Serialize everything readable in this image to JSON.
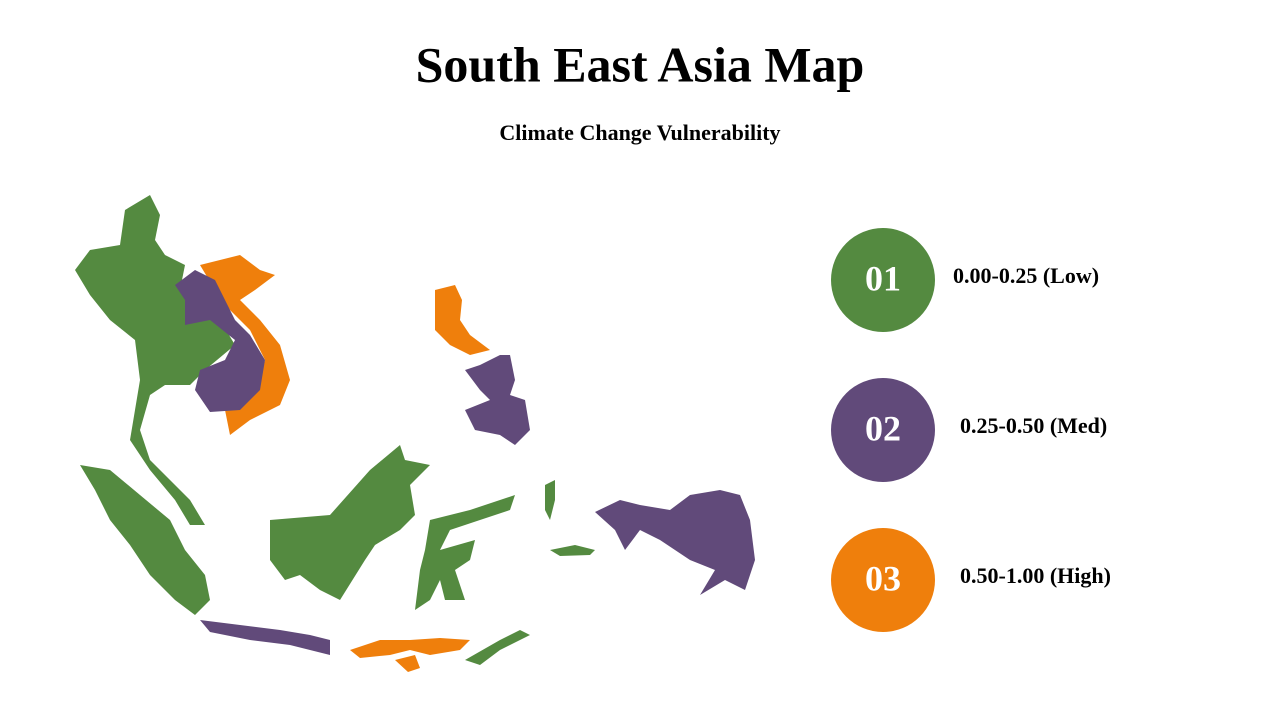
{
  "title": "South East Asia Map",
  "subtitle": "Climate Change Vulnerability",
  "legend": [
    {
      "number": "01",
      "label": "0.00-0.25 (Low)",
      "color": "#548a40"
    },
    {
      "number": "02",
      "label": "0.25-0.50 (Med)",
      "color": "#614a7a"
    },
    {
      "number": "03",
      "label": "0.50-1.00 (High)",
      "color": "#ef7f0c"
    }
  ]
}
